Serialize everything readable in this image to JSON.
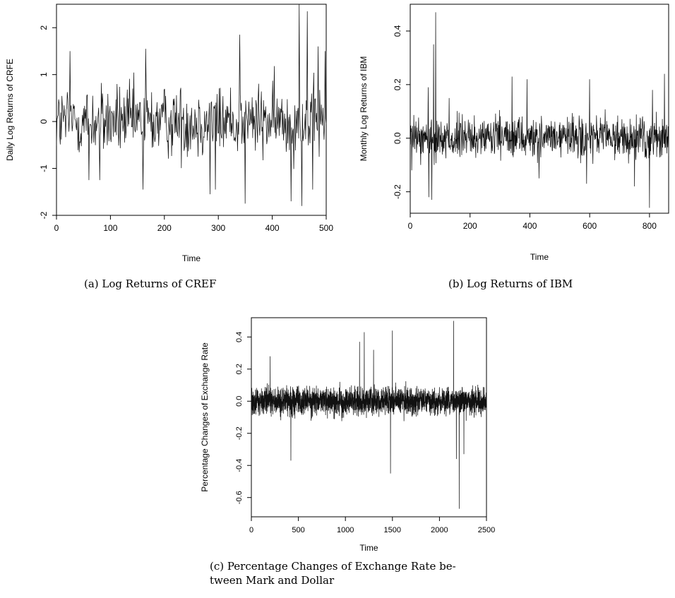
{
  "chart_data": [
    {
      "type": "line",
      "xlabel": "Time",
      "ylabel": "Daily Log Returns of CRFE",
      "xlim": [
        0,
        500
      ],
      "ylim": [
        -2,
        2.5
      ],
      "xticks": [
        0,
        100,
        200,
        300,
        400,
        500
      ],
      "yticks": [
        -2,
        -1,
        0,
        1,
        2
      ],
      "n": 500,
      "noise_scale": 0.55,
      "spikes": [
        [
          25,
          1.5
        ],
        [
          60,
          -1.25
        ],
        [
          80,
          -1.25
        ],
        [
          160,
          -1.45
        ],
        [
          165,
          1.55
        ],
        [
          285,
          -1.55
        ],
        [
          295,
          -1.45
        ],
        [
          340,
          1.85
        ],
        [
          350,
          -1.75
        ],
        [
          435,
          -1.7
        ],
        [
          450,
          2.5
        ],
        [
          455,
          -1.8
        ],
        [
          465,
          2.35
        ],
        [
          475,
          -1.45
        ],
        [
          485,
          1.6
        ],
        [
          498,
          1.5
        ]
      ],
      "caption": "(a) Log Returns of CREF"
    },
    {
      "type": "line",
      "xlabel": "Time",
      "ylabel": "Monthly Log Returns of IBM",
      "xlim": [
        0,
        864
      ],
      "ylim": [
        -0.28,
        0.5
      ],
      "xticks": [
        0,
        200,
        400,
        600,
        800
      ],
      "yticks": [
        -0.2,
        0.0,
        0.2,
        0.4
      ],
      "n": 864,
      "noise_scale": 0.055,
      "spikes": [
        [
          5,
          -0.12
        ],
        [
          60,
          0.19
        ],
        [
          62,
          -0.22
        ],
        [
          72,
          -0.23
        ],
        [
          78,
          0.35
        ],
        [
          85,
          0.47
        ],
        [
          130,
          0.15
        ],
        [
          340,
          0.23
        ],
        [
          390,
          0.22
        ],
        [
          430,
          -0.15
        ],
        [
          590,
          -0.17
        ],
        [
          600,
          0.22
        ],
        [
          750,
          -0.18
        ],
        [
          800,
          -0.26
        ],
        [
          810,
          0.18
        ],
        [
          850,
          0.24
        ]
      ],
      "caption": "(b) Log Returns of IBM"
    },
    {
      "type": "line",
      "xlabel": "Time",
      "ylabel": "Percentage Changes of Exchange Rate",
      "xlim": [
        0,
        2500
      ],
      "ylim": [
        -0.72,
        0.52
      ],
      "xticks": [
        0,
        500,
        1000,
        1500,
        2000,
        2500
      ],
      "yticks": [
        -0.6,
        -0.4,
        -0.2,
        0.0,
        0.2,
        0.4
      ],
      "n": 2500,
      "noise_scale": 0.06,
      "spikes": [
        [
          200,
          0.28
        ],
        [
          420,
          -0.37
        ],
        [
          1150,
          0.37
        ],
        [
          1200,
          0.43
        ],
        [
          1300,
          0.32
        ],
        [
          1480,
          -0.45
        ],
        [
          1500,
          0.44
        ],
        [
          2150,
          0.5
        ],
        [
          2180,
          -0.36
        ],
        [
          2210,
          -0.67
        ],
        [
          2260,
          -0.33
        ]
      ],
      "caption_lines": [
        "(c) Percentage Changes of Exchange Rate be-",
        "tween Mark and Dollar"
      ]
    }
  ]
}
